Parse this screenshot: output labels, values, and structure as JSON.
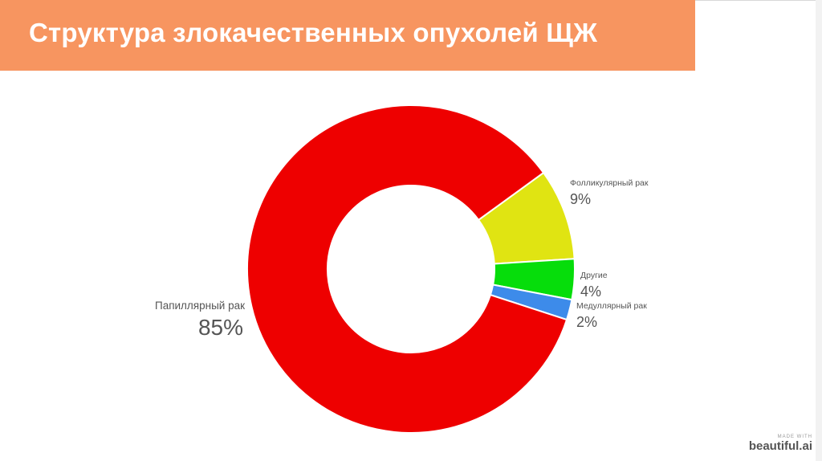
{
  "title": "Структура злокачественных опухолей ЩЖ",
  "chart_data": {
    "type": "pie",
    "donut": true,
    "categories": [
      "Папиллярный рак",
      "Фолликулярный рак",
      "Другие",
      "Медуллярный рак"
    ],
    "values": [
      85,
      9,
      4,
      2
    ],
    "value_labels": [
      "85%",
      "9%",
      "4%",
      "2%"
    ],
    "colors": [
      "#ee0000",
      "#e0e412",
      "#06dd0b",
      "#3d8bea"
    ],
    "legend": "labels beside slices"
  },
  "branding": {
    "made_with": "MADE WITH",
    "name": "beautiful.ai"
  }
}
